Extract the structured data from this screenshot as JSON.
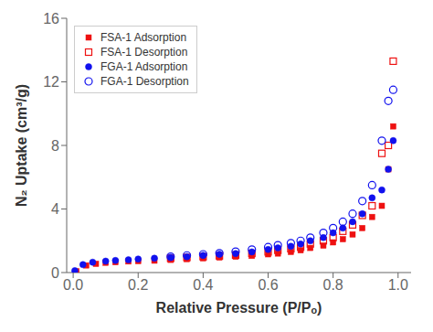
{
  "chart_data": {
    "type": "scatter",
    "xlabel": "Relative Pressure (P/Pₒ)",
    "ylabel": "N₂ Uptake (cm³/g)",
    "xlim": [
      -0.02,
      1.04
    ],
    "ylim": [
      0,
      16
    ],
    "xticks": [
      {
        "value": 0.0,
        "label": "0.0"
      },
      0.2,
      0.4,
      0.6,
      0.8,
      {
        "value": 1.0,
        "label": "1.0"
      }
    ],
    "yticks": [
      0,
      4,
      8,
      12,
      16
    ],
    "grid": false,
    "legend": "upper left",
    "series": [
      {
        "name": "FSA-1 Adsorption",
        "color": "#EE1111",
        "marker": "square",
        "x": [
          0.01,
          0.04,
          0.07,
          0.1,
          0.13,
          0.17,
          0.2,
          0.25,
          0.3,
          0.35,
          0.4,
          0.45,
          0.5,
          0.55,
          0.6,
          0.63,
          0.67,
          0.7,
          0.73,
          0.77,
          0.8,
          0.83,
          0.86,
          0.89,
          0.92,
          0.95,
          0.97,
          0.985
        ],
        "values": [
          0.08,
          0.45,
          0.55,
          0.62,
          0.65,
          0.7,
          0.72,
          0.75,
          0.8,
          0.85,
          0.9,
          0.95,
          1.0,
          1.05,
          1.15,
          1.2,
          1.3,
          1.4,
          1.55,
          1.7,
          1.9,
          2.1,
          2.4,
          2.8,
          3.5,
          4.2,
          6.5,
          9.2
        ]
      },
      {
        "name": "FSA-1 Desorption",
        "color": "#EE1111",
        "marker": "open_square",
        "x": [
          0.3,
          0.35,
          0.4,
          0.45,
          0.5,
          0.55,
          0.6,
          0.63,
          0.67,
          0.7,
          0.73,
          0.77,
          0.8,
          0.83,
          0.86,
          0.89,
          0.92,
          0.95,
          0.97,
          0.985
        ],
        "values": [
          0.9,
          0.95,
          1.0,
          1.05,
          1.1,
          1.2,
          1.3,
          1.4,
          1.5,
          1.6,
          1.8,
          2.0,
          2.2,
          2.6,
          3.0,
          3.6,
          4.2,
          7.5,
          8.0,
          13.3
        ]
      },
      {
        "name": "FGA-1 Adsorption",
        "color": "#1111EE",
        "marker": "circle",
        "x": [
          0.005,
          0.03,
          0.06,
          0.1,
          0.13,
          0.17,
          0.2,
          0.25,
          0.3,
          0.35,
          0.4,
          0.45,
          0.5,
          0.55,
          0.6,
          0.63,
          0.67,
          0.7,
          0.73,
          0.77,
          0.8,
          0.83,
          0.86,
          0.89,
          0.92,
          0.95,
          0.97,
          0.985
        ],
        "values": [
          0.12,
          0.5,
          0.65,
          0.72,
          0.76,
          0.8,
          0.85,
          0.9,
          0.95,
          1.0,
          1.08,
          1.15,
          1.2,
          1.3,
          1.45,
          1.55,
          1.65,
          1.8,
          2.0,
          2.2,
          2.5,
          2.8,
          3.2,
          3.7,
          4.7,
          5.2,
          6.5,
          8.3
        ]
      },
      {
        "name": "FGA-1 Desorption",
        "color": "#1111EE",
        "marker": "open_circle",
        "x": [
          0.3,
          0.35,
          0.4,
          0.45,
          0.5,
          0.55,
          0.6,
          0.63,
          0.67,
          0.7,
          0.73,
          0.77,
          0.8,
          0.83,
          0.86,
          0.89,
          0.92,
          0.95,
          0.97,
          0.985
        ],
        "values": [
          1.0,
          1.08,
          1.15,
          1.22,
          1.32,
          1.45,
          1.6,
          1.72,
          1.85,
          2.0,
          2.2,
          2.5,
          2.8,
          3.2,
          3.7,
          4.5,
          5.5,
          8.3,
          10.8,
          11.5
        ]
      }
    ]
  }
}
